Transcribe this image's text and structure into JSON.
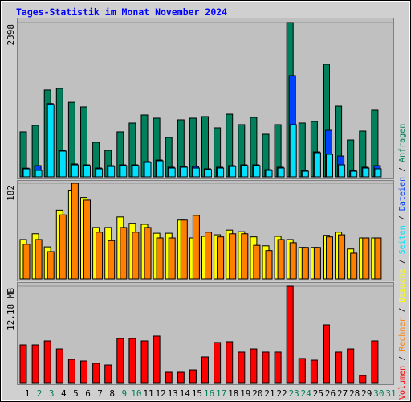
{
  "legend_separator": " / ",
  "chart_data": [
    {
      "type": "bar",
      "title": "Tages-Statistik im Monat November 2024",
      "ylim": [
        0,
        2398
      ],
      "yticks": [
        2398
      ],
      "series": [
        {
          "name": "Anfragen",
          "color": "#00805c",
          "values": [
            700,
            800,
            1350,
            1374,
            1160,
            1087,
            537,
            412,
            700,
            837,
            962,
            912,
            612,
            887,
            912,
            937,
            762,
            974,
            812,
            924,
            662,
            812,
            2398,
            837,
            862,
            1749,
            1099,
            574,
            712,
            1037,
            0
          ]
        },
        {
          "name": "Dateien",
          "color": "#0040ff",
          "values": [
            135,
            175,
            1140,
            412,
            200,
            187,
            137,
            175,
            187,
            187,
            237,
            262,
            150,
            162,
            162,
            125,
            150,
            175,
            187,
            187,
            112,
            150,
            1574,
            100,
            387,
            724,
            324,
            100,
            150,
            175,
            0
          ]
        },
        {
          "name": "Seiten",
          "color": "#00e0ff",
          "values": [
            125,
            100,
            1124,
            400,
            187,
            175,
            125,
            162,
            175,
            175,
            225,
            250,
            137,
            150,
            137,
            112,
            137,
            162,
            175,
            175,
            100,
            137,
            812,
            87,
            375,
            350,
            187,
            87,
            137,
            125,
            0
          ]
        }
      ]
    },
    {
      "type": "bar",
      "ylim": [
        0,
        182
      ],
      "yticks": [
        182
      ],
      "series": [
        {
          "name": "Besuche",
          "color": "#ffff00",
          "values": [
            75,
            86,
            61,
            131,
            169,
            155,
            98,
            98,
            118,
            106,
            104,
            87,
            87,
            112,
            78,
            81,
            84,
            93,
            90,
            80,
            63,
            81,
            75,
            60,
            60,
            83,
            89,
            57,
            78,
            78,
            0
          ]
        },
        {
          "name": "Rechner",
          "color": "#ff8000",
          "values": [
            66,
            75,
            52,
            122,
            182,
            150,
            89,
            73,
            98,
            89,
            98,
            78,
            78,
            112,
            121,
            89,
            80,
            86,
            86,
            64,
            54,
            75,
            69,
            60,
            60,
            80,
            84,
            49,
            78,
            78,
            0
          ]
        }
      ]
    },
    {
      "type": "bar",
      "ylim": [
        0,
        12.18
      ],
      "yticks": [
        {
          "value": 12.18,
          "label": "12.18 MB"
        }
      ],
      "categories": [
        "1",
        "2",
        "3",
        "4",
        "5",
        "6",
        "7",
        "8",
        "9",
        "10",
        "11",
        "12",
        "13",
        "14",
        "15",
        "16",
        "17",
        "18",
        "19",
        "20",
        "21",
        "22",
        "23",
        "24",
        "25",
        "26",
        "27",
        "28",
        "29",
        "30",
        "31"
      ],
      "category_colors": [
        "#000000",
        "#00805c",
        "#00805c",
        "#000000",
        "#000000",
        "#000000",
        "#000000",
        "#000000",
        "#00805c",
        "#00805c",
        "#000000",
        "#000000",
        "#000000",
        "#000000",
        "#000000",
        "#00805c",
        "#00805c",
        "#000000",
        "#000000",
        "#000000",
        "#000000",
        "#000000",
        "#00805c",
        "#00805c",
        "#000000",
        "#000000",
        "#000000",
        "#000000",
        "#000000",
        "#00805c",
        "#00805c"
      ],
      "series": [
        {
          "name": "Volumen",
          "color": "#ff0000",
          "values": [
            4.77,
            4.77,
            5.28,
            4.26,
            2.94,
            2.74,
            2.44,
            2.23,
            5.58,
            5.58,
            5.28,
            5.89,
            1.32,
            1.32,
            1.62,
            3.25,
            5.08,
            5.18,
            3.86,
            4.26,
            3.86,
            3.86,
            12.18,
            3.05,
            2.84,
            7.31,
            3.86,
            4.26,
            0.91,
            5.28,
            0
          ]
        }
      ]
    }
  ]
}
